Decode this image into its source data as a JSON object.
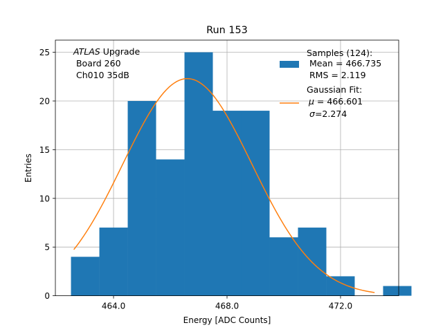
{
  "chart_data": {
    "type": "bar",
    "title": "Run 153",
    "xlabel": "Energy [ADC Counts]",
    "ylabel": "Entries",
    "xlim": [
      461.95,
      474.05
    ],
    "ylim": [
      0,
      26.25
    ],
    "grid": true,
    "xticks": [
      464,
      468,
      472
    ],
    "xtick_labels": [
      "464.0",
      "468.0",
      "472.0"
    ],
    "yticks": [
      0,
      5,
      10,
      15,
      20,
      25
    ],
    "yticks_labels": [
      "0",
      "5",
      "10",
      "15",
      "20",
      "25"
    ],
    "bin_width": 1,
    "bins": [
      {
        "x0": 462.5,
        "value": 4
      },
      {
        "x0": 463.5,
        "value": 7
      },
      {
        "x0": 464.5,
        "value": 20
      },
      {
        "x0": 465.5,
        "value": 14
      },
      {
        "x0": 466.5,
        "value": 25
      },
      {
        "x0": 467.5,
        "value": 19
      },
      {
        "x0": 468.5,
        "value": 19
      },
      {
        "x0": 469.5,
        "value": 6
      },
      {
        "x0": 470.5,
        "value": 7
      },
      {
        "x0": 471.5,
        "value": 2
      },
      {
        "x0": 472.5,
        "value": 0
      },
      {
        "x0": 473.5,
        "value": 1
      }
    ],
    "fit": {
      "mu": 466.601,
      "sigma": 2.274,
      "amplitude": 22.3,
      "x_range": [
        462.6,
        473.2
      ]
    },
    "colors": {
      "hist": "#1f77b4",
      "fit": "#ff7f0e",
      "grid": "#b0b0b0"
    },
    "annotation": {
      "experiment": "ATLAS",
      "experiment_suffix": " Upgrade",
      "line2": " Board 260",
      "line3": " Ch010 35dB"
    },
    "legend": {
      "placement": "top-right",
      "hist_title": "Samples (124):",
      "hist_line2": " Mean = 466.735",
      "hist_line3": " RMS = 2.119",
      "fit_title": "Gaussian Fit:",
      "fit_mu_symbol": "μ",
      "fit_mu_value": " = 466.601",
      "fit_sigma_symbol": "σ",
      "fit_sigma_value": "=2.274"
    }
  }
}
